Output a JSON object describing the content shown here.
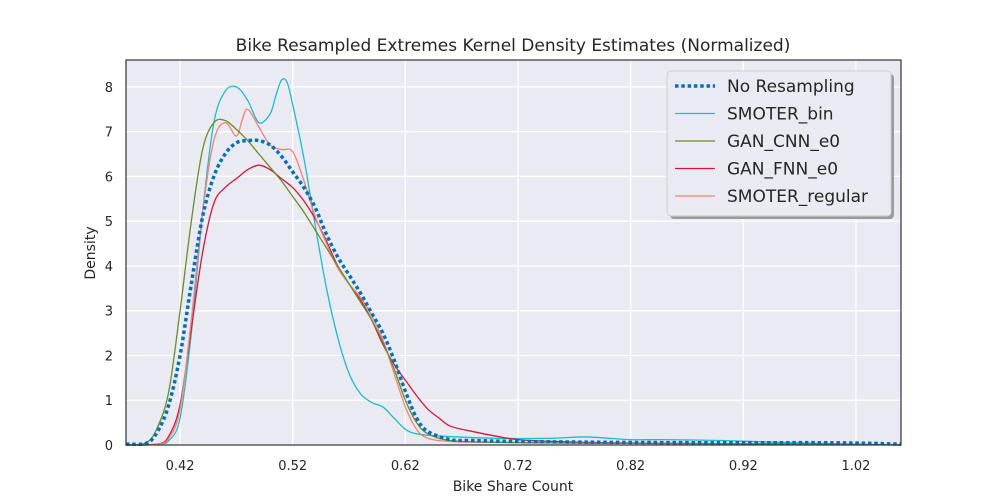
{
  "chart_data": {
    "type": "line",
    "title": "Bike Resampled Extremes Kernel Density Estimates (Normalized)",
    "xlabel": "Bike Share Count",
    "ylabel": "Density",
    "xlim": [
      0.372,
      1.06
    ],
    "ylim": [
      0,
      8.6
    ],
    "xticks": [
      0.42,
      0.52,
      0.62,
      0.72,
      0.82,
      0.92,
      1.02
    ],
    "xtick_labels": [
      "0.42",
      "0.52",
      "0.62",
      "0.72",
      "0.82",
      "0.92",
      "1.02"
    ],
    "yticks": [
      0,
      1,
      2,
      3,
      4,
      5,
      6,
      7,
      8
    ],
    "ytick_labels": [
      "0",
      "1",
      "2",
      "3",
      "4",
      "5",
      "6",
      "7",
      "8"
    ],
    "grid": true,
    "legend_position": "upper-right",
    "background": "#eaeaf2",
    "series": [
      {
        "name": "No Resampling",
        "color": "#0072bd",
        "style": "dotted",
        "width": 3.5,
        "x": [
          0.372,
          0.39,
          0.4,
          0.41,
          0.42,
          0.43,
          0.44,
          0.45,
          0.46,
          0.47,
          0.48,
          0.49,
          0.5,
          0.51,
          0.52,
          0.53,
          0.54,
          0.55,
          0.56,
          0.57,
          0.58,
          0.59,
          0.6,
          0.61,
          0.62,
          0.63,
          0.64,
          0.66,
          0.68,
          0.72,
          0.8,
          0.9,
          1.0,
          1.06
        ],
        "y": [
          0.02,
          0.04,
          0.3,
          0.9,
          2.0,
          3.6,
          5.1,
          6.0,
          6.5,
          6.75,
          6.8,
          6.8,
          6.7,
          6.45,
          6.1,
          5.75,
          5.3,
          4.7,
          4.2,
          3.8,
          3.4,
          2.95,
          2.5,
          1.9,
          1.2,
          0.6,
          0.3,
          0.12,
          0.1,
          0.08,
          0.06,
          0.05,
          0.05,
          0.02
        ]
      },
      {
        "name": "SMOTER_bin",
        "color": "#17becf",
        "style": "solid",
        "width": 1.3,
        "x": [
          0.372,
          0.4,
          0.41,
          0.42,
          0.43,
          0.44,
          0.45,
          0.46,
          0.47,
          0.48,
          0.49,
          0.5,
          0.505,
          0.51,
          0.515,
          0.52,
          0.53,
          0.54,
          0.55,
          0.56,
          0.57,
          0.58,
          0.59,
          0.6,
          0.61,
          0.62,
          0.63,
          0.65,
          0.7,
          0.75,
          0.78,
          0.82,
          0.85,
          0.9,
          0.95,
          1.0,
          1.06
        ],
        "y": [
          0.0,
          0.02,
          0.1,
          0.6,
          2.5,
          5.2,
          7.2,
          7.9,
          8.0,
          7.7,
          7.2,
          7.4,
          7.8,
          8.15,
          8.1,
          7.6,
          6.4,
          4.9,
          3.5,
          2.4,
          1.6,
          1.15,
          0.95,
          0.85,
          0.6,
          0.35,
          0.25,
          0.2,
          0.15,
          0.15,
          0.18,
          0.12,
          0.12,
          0.1,
          0.06,
          0.03,
          0.0
        ]
      },
      {
        "name": "GAN_CNN_e0",
        "color": "#6b8e23",
        "style": "solid",
        "width": 1.3,
        "x": [
          0.372,
          0.39,
          0.4,
          0.41,
          0.42,
          0.43,
          0.44,
          0.45,
          0.46,
          0.47,
          0.48,
          0.49,
          0.5,
          0.51,
          0.52,
          0.53,
          0.54,
          0.55,
          0.56,
          0.57,
          0.58,
          0.59,
          0.6,
          0.61,
          0.62,
          0.63,
          0.64,
          0.66,
          0.7,
          0.8,
          0.9,
          1.0,
          1.06
        ],
        "y": [
          0.0,
          0.05,
          0.4,
          1.2,
          3.0,
          5.0,
          6.6,
          7.2,
          7.25,
          7.05,
          6.8,
          6.5,
          6.2,
          5.9,
          5.55,
          5.2,
          4.8,
          4.4,
          4.0,
          3.6,
          3.2,
          2.8,
          2.3,
          1.7,
          1.0,
          0.5,
          0.25,
          0.1,
          0.06,
          0.04,
          0.03,
          0.02,
          0.0
        ]
      },
      {
        "name": "GAN_FNN_e0",
        "color": "#dc143c",
        "style": "solid",
        "width": 1.3,
        "x": [
          0.372,
          0.4,
          0.41,
          0.42,
          0.43,
          0.44,
          0.45,
          0.46,
          0.47,
          0.48,
          0.49,
          0.5,
          0.51,
          0.52,
          0.53,
          0.54,
          0.55,
          0.56,
          0.57,
          0.58,
          0.59,
          0.6,
          0.61,
          0.62,
          0.63,
          0.64,
          0.65,
          0.66,
          0.68,
          0.7,
          0.72,
          0.75,
          0.8,
          0.9,
          1.0,
          1.06
        ],
        "y": [
          0.0,
          0.02,
          0.2,
          0.9,
          2.6,
          4.3,
          5.4,
          5.75,
          5.95,
          6.15,
          6.25,
          6.15,
          5.95,
          5.75,
          5.45,
          5.05,
          4.55,
          4.0,
          3.6,
          3.25,
          2.8,
          2.25,
          1.8,
          1.45,
          1.1,
          0.8,
          0.6,
          0.42,
          0.3,
          0.2,
          0.12,
          0.08,
          0.05,
          0.03,
          0.02,
          0.0
        ]
      },
      {
        "name": "SMOTER_regular",
        "color": "#fa8072",
        "style": "solid",
        "width": 1.3,
        "x": [
          0.372,
          0.4,
          0.41,
          0.42,
          0.43,
          0.44,
          0.45,
          0.46,
          0.47,
          0.475,
          0.48,
          0.49,
          0.5,
          0.51,
          0.52,
          0.53,
          0.54,
          0.55,
          0.56,
          0.57,
          0.58,
          0.59,
          0.6,
          0.61,
          0.62,
          0.63,
          0.64,
          0.66,
          0.7,
          0.8,
          0.9,
          1.0,
          1.06
        ],
        "y": [
          0.0,
          0.02,
          0.15,
          0.8,
          2.8,
          5.2,
          6.8,
          7.2,
          6.9,
          7.25,
          7.5,
          7.1,
          6.7,
          6.6,
          6.55,
          5.9,
          5.1,
          4.5,
          3.95,
          3.6,
          3.3,
          2.9,
          2.35,
          1.6,
          0.85,
          0.35,
          0.15,
          0.08,
          0.06,
          0.04,
          0.03,
          0.02,
          0.0
        ]
      }
    ]
  }
}
